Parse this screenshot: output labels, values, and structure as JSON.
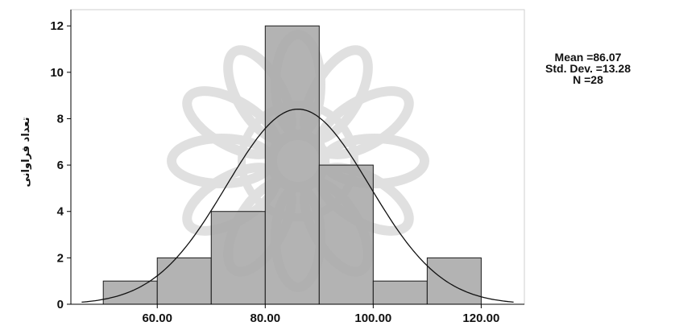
{
  "chart_data": {
    "type": "histogram",
    "bins": [
      {
        "start": 50,
        "end": 60,
        "count": 1
      },
      {
        "start": 60,
        "end": 70,
        "count": 2
      },
      {
        "start": 70,
        "end": 80,
        "count": 4
      },
      {
        "start": 80,
        "end": 90,
        "count": 12
      },
      {
        "start": 90,
        "end": 100,
        "count": 6
      },
      {
        "start": 100,
        "end": 110,
        "count": 1
      },
      {
        "start": 110,
        "end": 120,
        "count": 2
      }
    ],
    "x_ticks": [
      60,
      80,
      100,
      120
    ],
    "x_tick_labels": [
      "60.00",
      "80.00",
      "100.00",
      "120.00"
    ],
    "y_ticks": [
      0,
      2,
      4,
      6,
      8,
      10,
      12
    ],
    "y_tick_labels": [
      "0",
      "2",
      "4",
      "6",
      "8",
      "10",
      "12"
    ],
    "xlim": [
      44,
      128
    ],
    "ylim": [
      0,
      12.7
    ],
    "ylabel": "تعداد فراوانی",
    "xlabel": "",
    "normal_curve": {
      "mean": 86.07,
      "sd": 13.28,
      "n": 28,
      "bin_width": 10
    },
    "stats_lines": [
      "Mean =86.07",
      "Std. Dev. =13.28",
      "N =28"
    ],
    "colors": {
      "bar_fill": "#a9a9a9",
      "bar_stroke": "#1a1a1a",
      "curve": "#111111",
      "plot_bg": "#ffffff",
      "frame": "#cfcfcf"
    },
    "grid": false
  }
}
